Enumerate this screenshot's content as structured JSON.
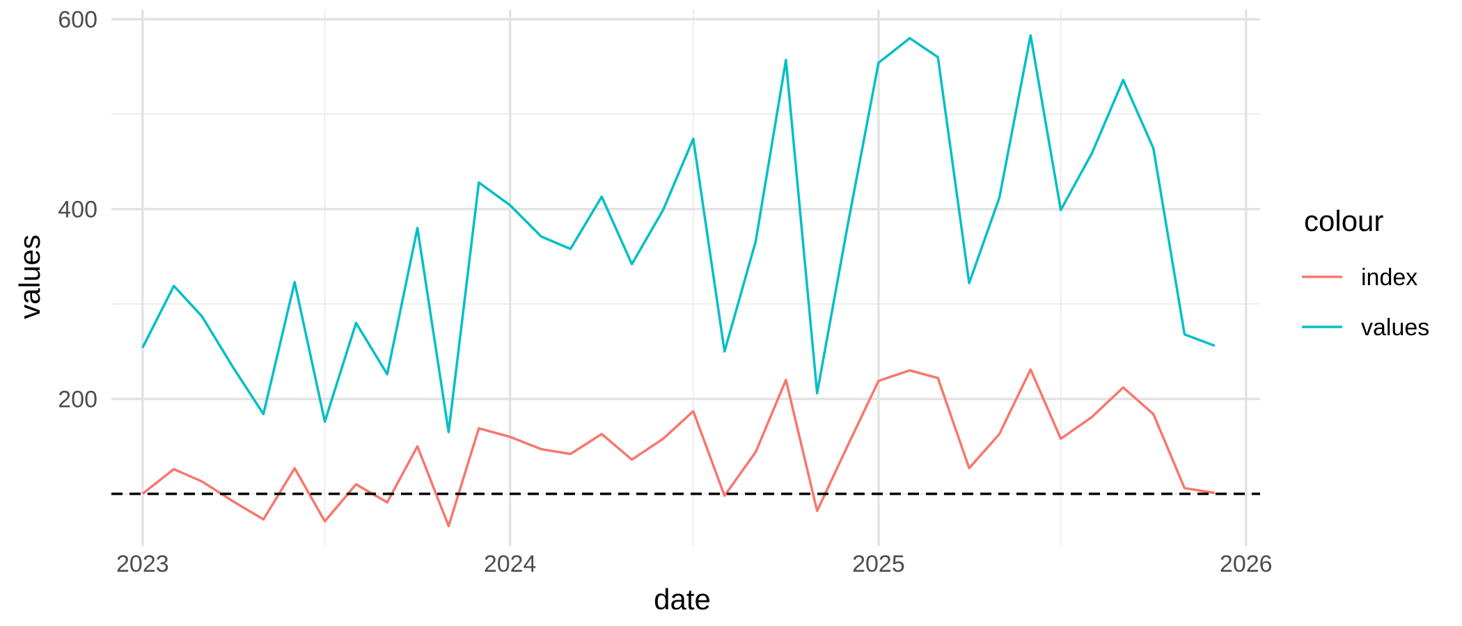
{
  "chart_data": {
    "type": "line",
    "xlabel": "date",
    "ylabel": "values",
    "x_ticks": [
      "2023",
      "2024",
      "2025",
      "2026"
    ],
    "y_ticks": [
      "200",
      "400",
      "600"
    ],
    "ylim": [
      45,
      610
    ],
    "xlim": [
      "2022-12-01",
      "2026-01-15"
    ],
    "grid": true,
    "legend_title": "colour",
    "legend_position": "right",
    "reference_line": {
      "y": 100,
      "style": "dashed",
      "color": "#000000"
    },
    "x": [
      "2023-01-01",
      "2023-02-01",
      "2023-03-01",
      "2023-04-01",
      "2023-05-01",
      "2023-06-01",
      "2023-07-01",
      "2023-08-01",
      "2023-09-01",
      "2023-10-01",
      "2023-11-01",
      "2023-12-01",
      "2024-01-01",
      "2024-02-01",
      "2024-03-01",
      "2024-04-01",
      "2024-05-01",
      "2024-06-01",
      "2024-07-01",
      "2024-08-01",
      "2024-09-01",
      "2024-10-01",
      "2024-11-01",
      "2024-12-01",
      "2025-01-01",
      "2025-02-01",
      "2025-03-01",
      "2025-04-01",
      "2025-05-01",
      "2025-06-01",
      "2025-07-01",
      "2025-08-01",
      "2025-09-01",
      "2025-10-01",
      "2025-11-01",
      "2025-12-01"
    ],
    "series": [
      {
        "name": "index",
        "color": "#F8766D",
        "values": [
          100,
          126,
          113,
          92,
          73,
          127,
          71,
          110,
          91,
          150,
          66,
          169,
          160,
          147,
          142,
          163,
          136,
          158,
          187,
          98,
          144,
          220,
          82,
          150,
          219,
          230,
          222,
          127,
          163,
          231,
          158,
          181,
          212,
          184,
          106,
          101
        ]
      },
      {
        "name": "values",
        "color": "#00BFC4",
        "values": [
          254,
          319,
          287,
          233,
          184,
          323,
          176,
          280,
          226,
          380,
          165,
          428,
          404,
          371,
          358,
          413,
          342,
          399,
          474,
          250,
          366,
          557,
          206,
          381,
          554,
          580,
          560,
          322,
          412,
          583,
          399,
          459,
          536,
          464,
          268,
          256
        ]
      }
    ]
  }
}
